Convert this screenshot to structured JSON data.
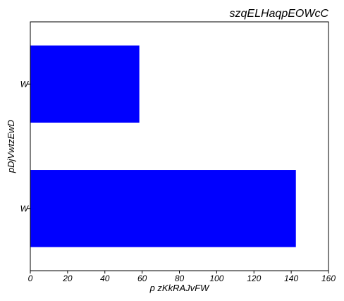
{
  "chart_data": {
    "type": "bar",
    "orientation": "horizontal",
    "title": "szqELHaqpEOWcC",
    "xlabel": "p zKkRAJvFW",
    "ylabel": "pDjVwtzEwD",
    "categories": [
      "W",
      "W"
    ],
    "values": [
      58.5,
      142.5
    ],
    "xlim": [
      0,
      160
    ],
    "xticks": [
      "0",
      "20",
      "40",
      "60",
      "80",
      "100",
      "120",
      "140",
      "160"
    ],
    "grid": false,
    "bar_color": "#0000ff"
  }
}
